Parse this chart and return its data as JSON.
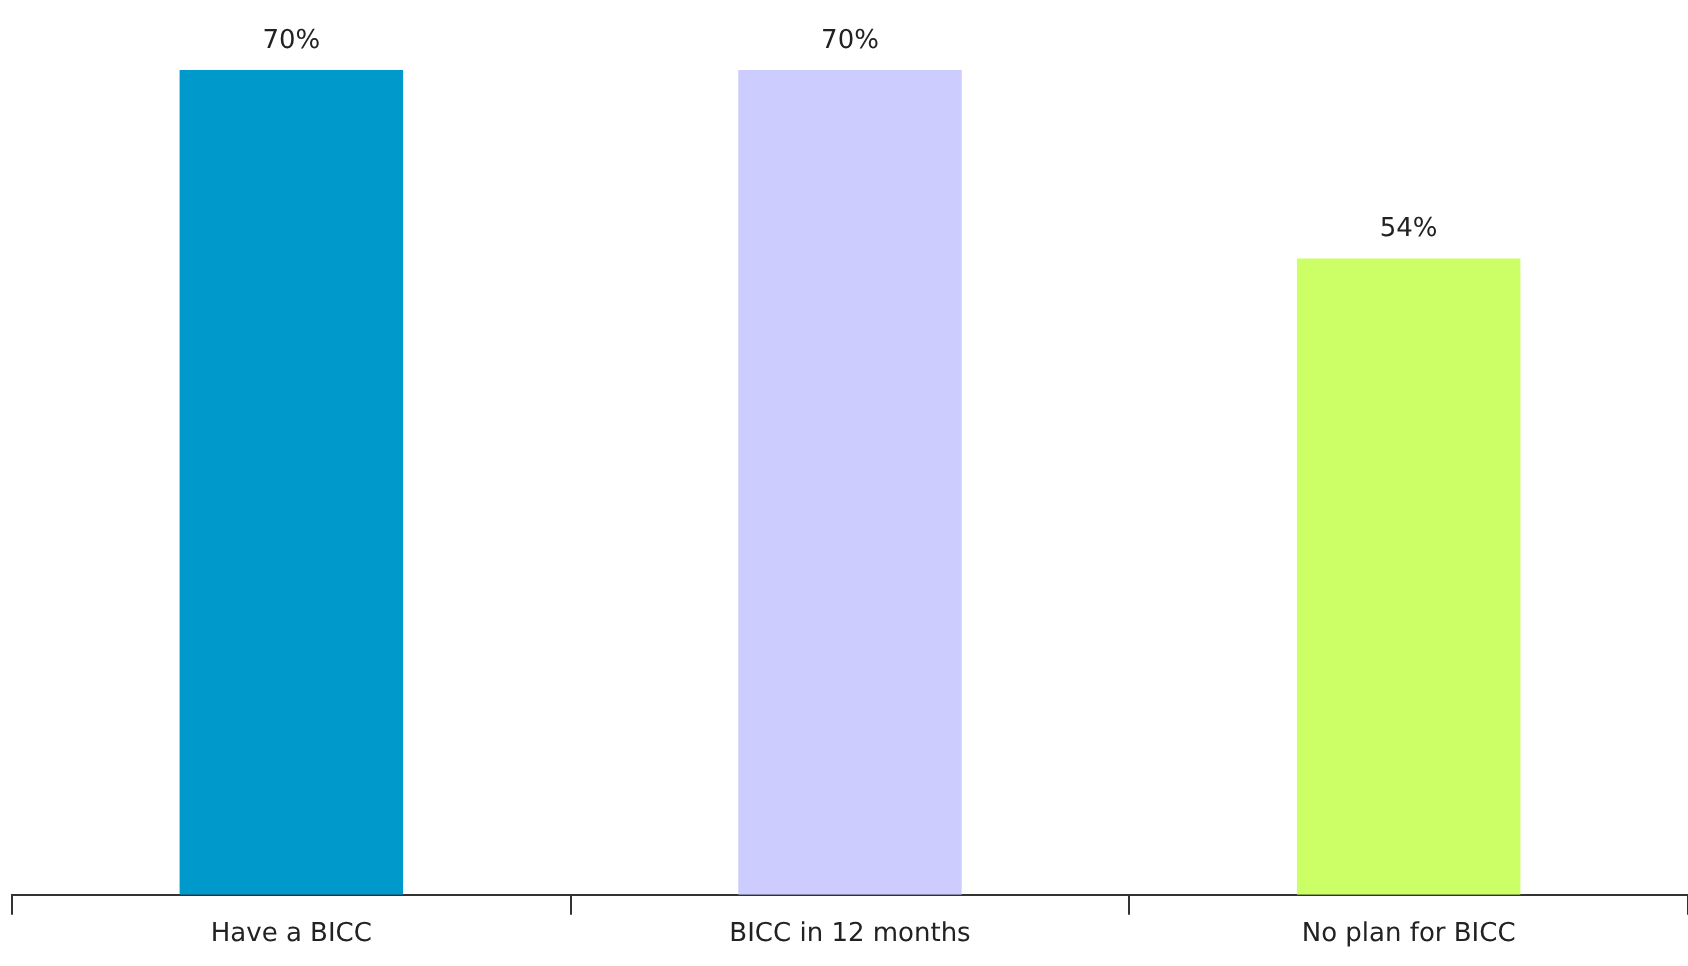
{
  "chart_data": {
    "type": "bar",
    "categories": [
      "Have a BICC",
      "BICC in 12 months",
      "No plan for BICC"
    ],
    "values": [
      70,
      70,
      54
    ],
    "colors": [
      "#0099cc",
      "#ccccff",
      "#ccff66"
    ],
    "value_labels": [
      "70%",
      "70%",
      "54%"
    ],
    "ylim": [
      0,
      70
    ],
    "grid": false,
    "legend": false
  }
}
